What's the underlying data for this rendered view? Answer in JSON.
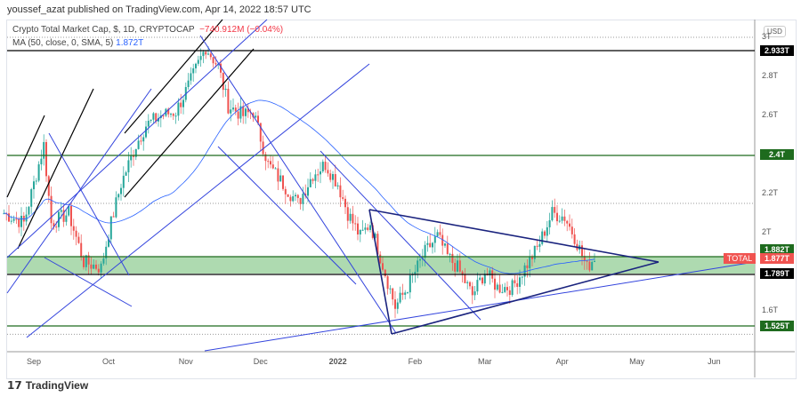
{
  "header": {
    "published": "youssef_azat published on TradingView.com, Apr 14, 2022 18:57 UTC"
  },
  "legend": {
    "symbol": "Crypto Total Market Cap, $, 1D, CRYPTOCAP",
    "change": "−740.912M (−0.04%)",
    "ma": "MA (50, close, 0, SMA, 5)",
    "ma_value": "1.872T"
  },
  "currency": "USD",
  "colors": {
    "up": "#26a69a",
    "down": "#ef5350",
    "ma": "#2962ff",
    "support_green": "#1e6b1e",
    "zone": "#a5d6a7"
  },
  "price_tags": [
    {
      "label": "2.933T",
      "value": 2.933,
      "color": "#000000"
    },
    {
      "label": "2.4T",
      "value": 2.4,
      "color": "#1e6b1e"
    },
    {
      "label": "1.882T",
      "value": 1.882,
      "color": "#1e6b1e"
    },
    {
      "label": "1.877T",
      "value": 1.877,
      "color": "#f05350"
    },
    {
      "label": "1.789T",
      "value": 1.789,
      "color": "#000000"
    },
    {
      "label": "1.525T",
      "value": 1.525,
      "color": "#1e6b1e"
    }
  ],
  "total_tag": "TOTAL",
  "logo": "TradingView",
  "chart_data": {
    "type": "candlestick",
    "title": "Crypto Total Market Cap, $, 1D, CRYPTOCAP",
    "y_ticks": [
      "3T",
      "2.8T",
      "2.6T",
      "2.2T",
      "2T",
      "1.6T"
    ],
    "y_tick_values": [
      3,
      2.8,
      2.6,
      2.2,
      2,
      1.6
    ],
    "x_ticks": [
      "Sep",
      "Oct",
      "Nov",
      "Dec",
      "2022",
      "Feb",
      "Mar",
      "Apr",
      "May",
      "Jun"
    ],
    "ylim": [
      1.45,
      3.05
    ],
    "series": [
      {
        "dates": [
          "2021-08-20",
          "2021-08-28",
          "2021-09-05",
          "2021-09-08",
          "2021-09-15",
          "2021-09-21",
          "2021-09-28",
          "2021-10-01",
          "2021-10-06",
          "2021-10-12",
          "2021-10-16",
          "2021-10-22",
          "2021-10-28",
          "2021-11-02",
          "2021-11-09",
          "2021-11-14",
          "2021-11-18",
          "2021-11-24",
          "2021-11-28",
          "2021-12-04",
          "2021-12-10",
          "2021-12-16",
          "2021-12-22",
          "2021-12-27",
          "2022-01-01",
          "2022-01-05",
          "2022-01-10",
          "2022-01-14",
          "2022-01-21",
          "2022-01-24",
          "2022-01-28",
          "2022-02-01",
          "2022-02-05",
          "2022-02-10",
          "2022-02-14",
          "2022-02-18",
          "2022-02-24",
          "2022-03-01",
          "2022-03-06",
          "2022-03-12",
          "2022-03-16",
          "2022-03-22",
          "2022-03-28",
          "2022-04-02",
          "2022-04-06",
          "2022-04-11",
          "2022-04-14"
        ],
        "close": [
          2.1,
          2.05,
          2.45,
          2.05,
          2.1,
          1.85,
          1.82,
          2.0,
          2.25,
          2.45,
          2.55,
          2.6,
          2.62,
          2.75,
          2.95,
          2.85,
          2.65,
          2.6,
          2.62,
          2.35,
          2.25,
          2.15,
          2.3,
          2.35,
          2.25,
          2.1,
          1.98,
          2.05,
          1.75,
          1.62,
          1.7,
          1.8,
          1.9,
          1.98,
          1.88,
          1.82,
          1.68,
          1.8,
          1.72,
          1.72,
          1.8,
          1.92,
          2.1,
          2.08,
          1.98,
          1.82,
          1.877
        ]
      }
    ]
  }
}
